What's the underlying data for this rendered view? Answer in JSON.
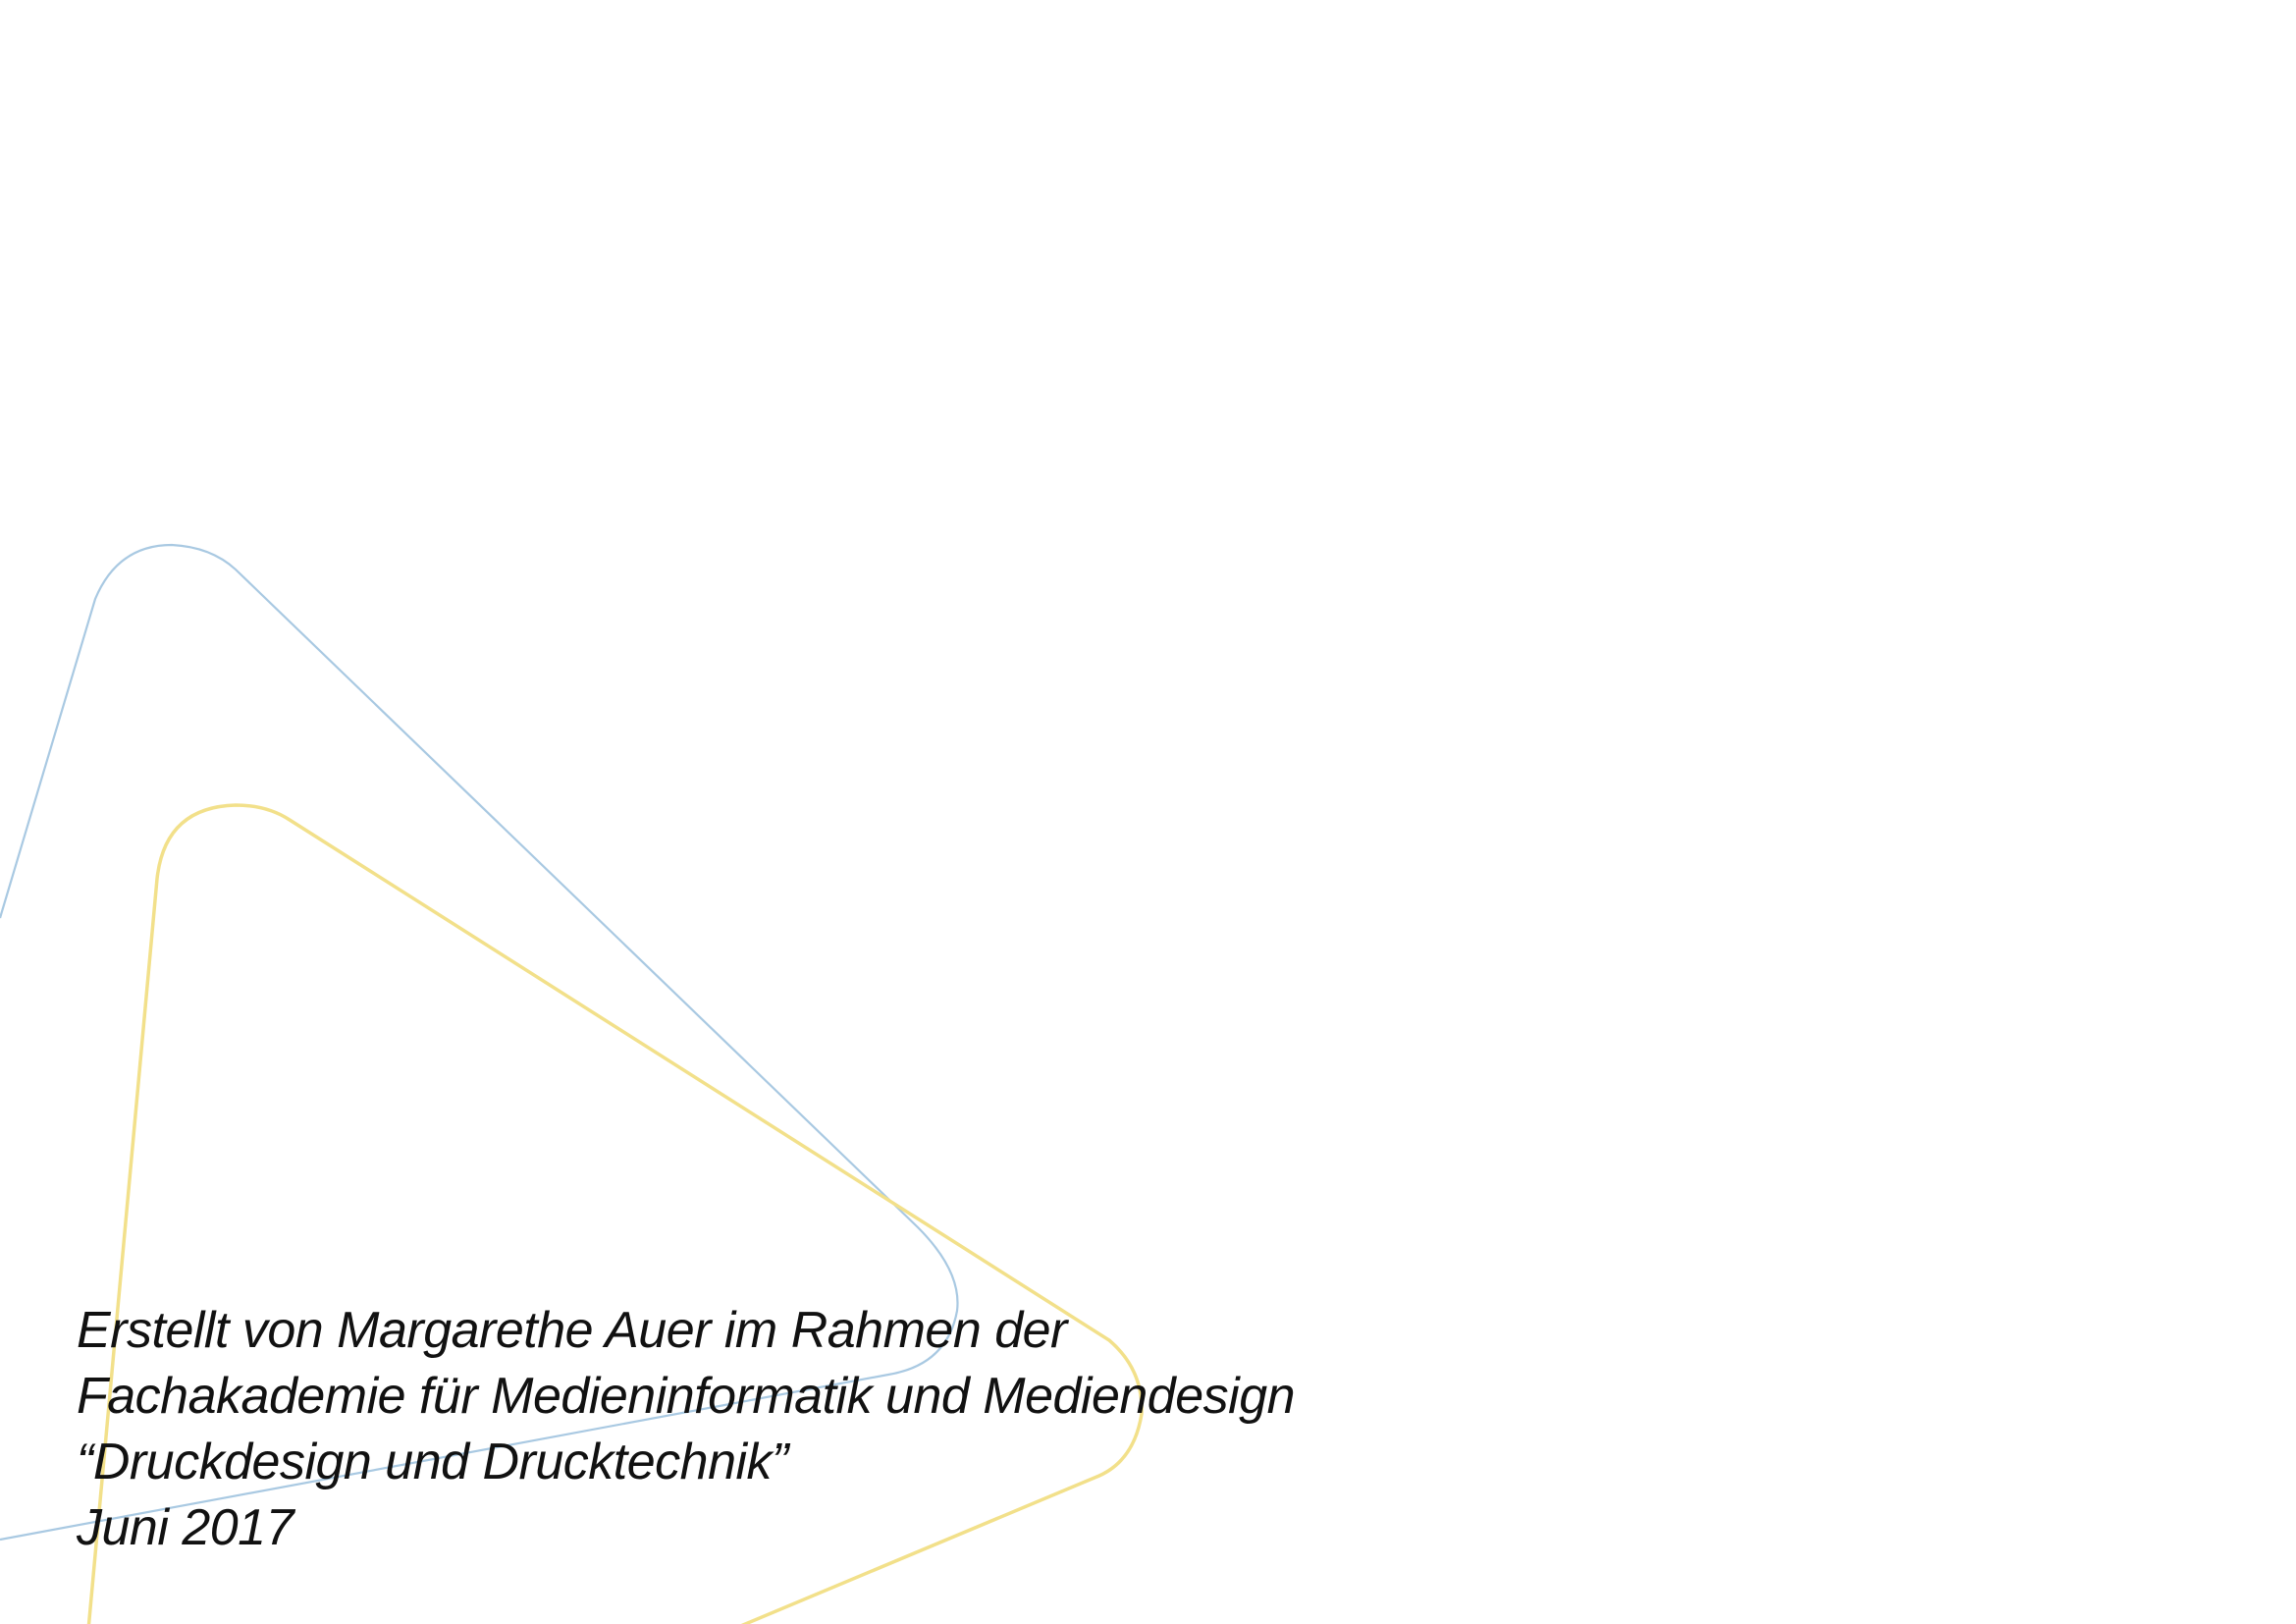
{
  "colors": {
    "blue_line": "#a9c9e2",
    "yellow_line": "#f2e08a",
    "text": "#111111",
    "background": "#ffffff"
  },
  "colophon": {
    "line1": "Erstellt von Margarethe Auer im Rahmen der",
    "line2": "Fachakademie für Medieninformatik und Mediendesign",
    "line3": "“Druckdesign und Drucktechnik”",
    "date": "Juni 2017"
  }
}
